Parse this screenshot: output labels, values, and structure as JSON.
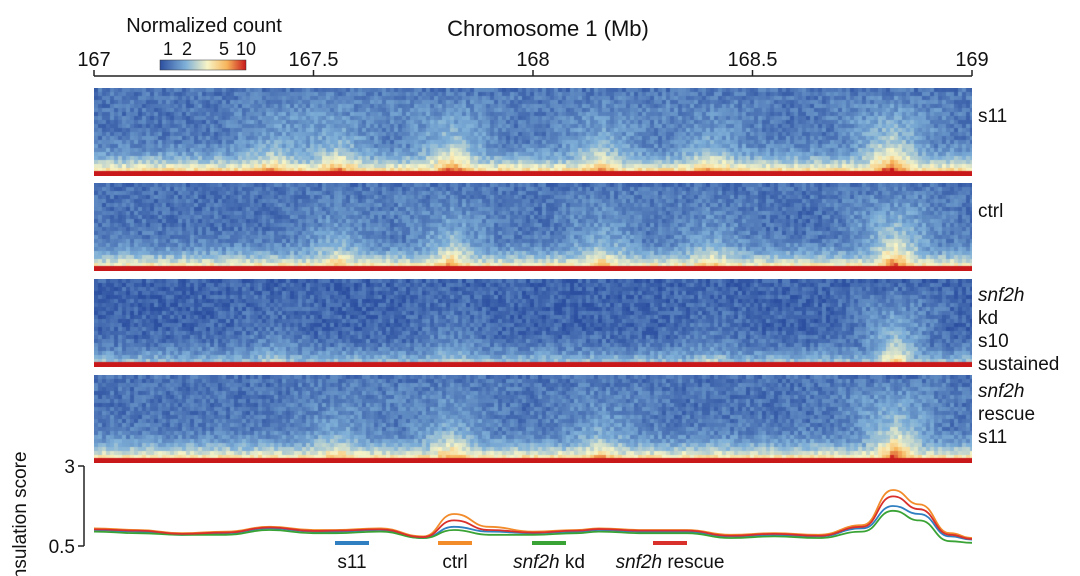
{
  "chart_data": [
    {
      "type": "heatmap",
      "title": "Chromosome 1 (Mb)",
      "x_axis": {
        "label": "Chromosome 1 (Mb)",
        "range": [
          167,
          169
        ],
        "ticks": [
          167,
          167.5,
          168,
          168.5,
          169
        ],
        "tick_labels": [
          "167",
          "167.5",
          "168",
          "168.5",
          "169"
        ]
      },
      "colorbar": {
        "label": "Normalized count",
        "tick_labels": [
          "1",
          "2",
          "5",
          "10"
        ],
        "ticks": [
          1,
          2,
          5,
          10
        ],
        "scale": "log",
        "colors": [
          "#2c4fa0",
          "#7fb0d8",
          "#f7f4c6",
          "#f7b45a",
          "#c8181a"
        ]
      },
      "tracks": [
        {
          "label_lines": [
            {
              "text": "s11",
              "italic": false
            }
          ],
          "boundaries_mb": [
            167.4,
            167.55,
            167.81,
            168.15,
            168.4,
            168.81
          ],
          "boundary_strength": [
            0.45,
            0.55,
            0.75,
            0.55,
            0.45,
            0.9
          ],
          "signal": 1.0
        },
        {
          "label_lines": [
            {
              "text": "ctrl",
              "italic": false
            }
          ],
          "boundaries_mb": [
            167.55,
            167.81,
            168.15,
            168.4,
            168.82
          ],
          "boundary_strength": [
            0.45,
            0.6,
            0.5,
            0.4,
            0.9
          ],
          "signal": 0.9
        },
        {
          "label_lines": [
            {
              "text": "snf2h",
              "italic": true
            },
            {
              "text": "kd",
              "italic": false
            },
            {
              "text": "s10",
              "italic": false
            },
            {
              "text": "sustained",
              "italic": false
            }
          ],
          "boundaries_mb": [
            167.4,
            167.81,
            168.4,
            168.82
          ],
          "boundary_strength": [
            0.2,
            0.25,
            0.2,
            0.8
          ],
          "signal": 0.55
        },
        {
          "label_lines": [
            {
              "text": "snf2h",
              "italic": true
            },
            {
              "text": "rescue",
              "italic": false
            },
            {
              "text": "s11",
              "italic": false
            }
          ],
          "boundaries_mb": [
            167.55,
            167.81,
            168.15,
            168.82
          ],
          "boundary_strength": [
            0.4,
            0.55,
            0.45,
            0.9
          ],
          "signal": 0.95
        }
      ]
    },
    {
      "type": "line",
      "ylabel": "Insulation score",
      "ylim": [
        0.5,
        3
      ],
      "yticks": [
        0.5,
        3
      ],
      "ytick_labels": [
        "0.5",
        "3"
      ],
      "x": [
        167.0,
        167.1,
        167.2,
        167.3,
        167.4,
        167.5,
        167.55,
        167.65,
        167.75,
        167.82,
        167.9,
        168.0,
        168.1,
        168.15,
        168.25,
        168.35,
        168.45,
        168.55,
        168.65,
        168.75,
        168.82,
        168.88,
        168.95,
        169.0
      ],
      "series": [
        {
          "name": "s11",
          "italic_part": "",
          "plain_part": "s11",
          "color": "#2f7fc1",
          "values": [
            1.0,
            0.95,
            0.85,
            0.9,
            1.05,
            0.95,
            0.95,
            1.0,
            0.75,
            1.1,
            0.95,
            0.9,
            0.95,
            1.0,
            0.95,
            0.95,
            0.8,
            0.85,
            0.8,
            1.05,
            1.75,
            1.5,
            0.8,
            0.7
          ]
        },
        {
          "name": "ctrl",
          "italic_part": "",
          "plain_part": "ctrl",
          "color": "#f28b2a",
          "values": [
            1.05,
            1.0,
            0.9,
            0.95,
            1.1,
            1.0,
            1.0,
            1.05,
            0.8,
            1.5,
            1.1,
            0.95,
            1.0,
            1.05,
            1.0,
            1.0,
            0.85,
            0.9,
            0.85,
            1.15,
            2.25,
            1.8,
            0.9,
            0.75
          ]
        },
        {
          "name": "snf2h kd",
          "italic_part": "snf2h",
          "plain_part": " kd",
          "color": "#3aa335",
          "values": [
            0.95,
            0.9,
            0.85,
            0.85,
            1.0,
            0.9,
            0.9,
            0.95,
            0.75,
            1.0,
            0.85,
            0.85,
            0.9,
            0.95,
            0.9,
            0.9,
            0.75,
            0.8,
            0.75,
            0.95,
            1.6,
            1.3,
            0.65,
            0.6
          ]
        },
        {
          "name": "snf2h rescue",
          "italic_part": "snf2h",
          "plain_part": " rescue",
          "color": "#d9302c",
          "values": [
            1.02,
            0.98,
            0.88,
            0.92,
            1.08,
            0.97,
            0.98,
            1.02,
            0.78,
            1.3,
            1.0,
            0.92,
            0.98,
            1.03,
            0.98,
            0.98,
            0.82,
            0.88,
            0.82,
            1.1,
            2.05,
            1.65,
            0.85,
            0.72
          ]
        }
      ]
    }
  ]
}
